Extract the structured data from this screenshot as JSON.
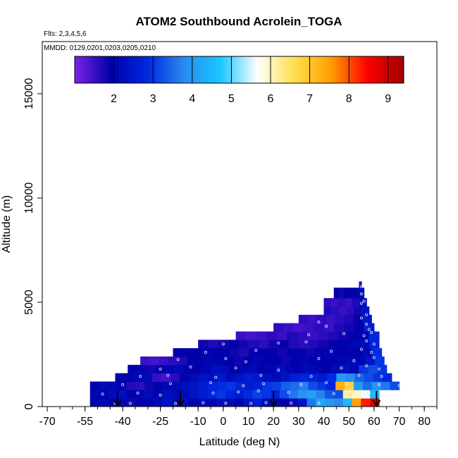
{
  "chart_data": {
    "type": "heatmap",
    "title": "ATOM2 Southbound Acrolein_TOGA",
    "flights_note": "Flts: 2,3,4,5,6",
    "dates_note": "MMDD: 0129,0201,0203,0205,0210",
    "xlabel": "Latitude (deg N)",
    "ylabel": "Altitude (m)",
    "xlim": [
      -72,
      85
    ],
    "ylim": [
      0,
      17500
    ],
    "x_ticks": [
      -70,
      -55,
      -40,
      -25,
      -10,
      0,
      10,
      20,
      30,
      40,
      50,
      60,
      70,
      80
    ],
    "y_ticks": [
      0,
      5000,
      10000,
      15000
    ],
    "colorbar": {
      "range": [
        1,
        9.4
      ],
      "ticks": [
        2,
        3,
        4,
        5,
        6,
        7,
        8,
        9
      ],
      "colors": [
        "#7b22e8",
        "#0000a8",
        "#0028e0",
        "#2a8cf0",
        "#18c8ff",
        "#ffffff",
        "#ffe050",
        "#ffa000",
        "#ff0000",
        "#a00000"
      ]
    },
    "layers": [
      {
        "alt": [
          0,
          400
        ],
        "lat": [
          -53,
          62
        ],
        "values": [
          2.0,
          2.1,
          1.9,
          2.1,
          1.8,
          1.9,
          2.0,
          2.2,
          2.4,
          2.1,
          2.3,
          2.0,
          2.2,
          2.1,
          2.3,
          2.2,
          2.0,
          2.4,
          2.6,
          2.2,
          2.1,
          2.0,
          2.2,
          2.4,
          3.6,
          4.2,
          4.0,
          3.8,
          4.5,
          7.5,
          8.3,
          8.8
        ]
      },
      {
        "alt": [
          400,
          800
        ],
        "lat": [
          -53,
          62
        ],
        "values": [
          2.1,
          2.0,
          2.2,
          2.3,
          2.0,
          2.1,
          2.2,
          2.1,
          2.3,
          2.2,
          2.2,
          2.4,
          2.6,
          2.8,
          3.0,
          2.8,
          2.6,
          2.9,
          3.1,
          3.0,
          2.8,
          3.2,
          3.6,
          3.9,
          4.1,
          3.7,
          3.3,
          3.2,
          6.2,
          6.0,
          5.6,
          4.5
        ]
      },
      {
        "alt": [
          800,
          1200
        ],
        "lat": [
          -53,
          70
        ],
        "values": [
          2.0,
          2.2,
          2.1,
          1.9,
          1.7,
          1.6,
          1.8,
          2.0,
          2.1,
          2.2,
          2.3,
          2.4,
          2.6,
          2.8,
          2.9,
          3.0,
          2.8,
          2.6,
          2.7,
          3.0,
          3.1,
          3.4,
          3.5,
          3.7,
          3.2,
          3.0,
          2.8,
          7.3,
          6.8,
          4.0,
          3.5,
          3.9,
          3.6,
          3.2
        ]
      },
      {
        "alt": [
          1200,
          1600
        ],
        "lat": [
          -43,
          67
        ],
        "values": [
          2.0,
          1.9,
          2.1,
          2.2,
          1.5,
          1.4,
          1.6,
          2.0,
          2.2,
          2.4,
          2.3,
          2.5,
          2.2,
          2.4,
          2.6,
          2.5,
          2.3,
          2.2,
          2.4,
          2.6,
          2.8,
          2.7,
          2.5,
          2.9,
          4.0,
          3.8,
          3.4,
          3.2,
          3.0,
          2.8
        ]
      },
      {
        "alt": [
          1600,
          2000
        ],
        "lat": [
          -38,
          65
        ],
        "values": [
          2.0,
          2.1,
          1.8,
          2.0,
          2.1,
          2.2,
          2.0,
          1.9,
          2.1,
          2.3,
          2.2,
          2.0,
          2.1,
          2.2,
          2.0,
          2.1,
          2.3,
          2.1,
          2.0,
          2.2,
          2.1,
          2.0,
          2.2,
          2.3,
          2.1,
          3.0,
          3.2,
          3.0
        ]
      },
      {
        "alt": [
          2000,
          2400
        ],
        "lat": [
          -33,
          64
        ],
        "values": [
          1.5,
          1.4,
          1.5,
          1.6,
          1.7,
          1.9,
          2.0,
          2.1,
          2.0,
          1.9,
          1.8,
          2.0,
          2.1,
          2.0,
          1.9,
          1.8,
          2.0,
          2.1,
          2.0,
          1.9,
          2.0,
          2.1,
          2.2,
          2.1,
          2.4,
          3.0
        ]
      },
      {
        "alt": [
          2400,
          2800
        ],
        "lat": [
          -20,
          63
        ],
        "values": [
          2.0,
          1.9,
          2.0,
          2.1,
          1.9,
          2.0,
          1.8,
          1.7,
          1.9,
          2.0,
          1.9,
          1.8,
          2.0,
          1.9,
          1.8,
          2.0,
          2.1,
          2.0,
          1.9,
          2.0,
          2.2,
          2.9
        ]
      },
      {
        "alt": [
          2800,
          3200
        ],
        "lat": [
          -10,
          62
        ],
        "values": [
          1.8,
          1.7,
          1.8,
          1.9,
          1.8,
          1.7,
          1.6,
          1.8,
          1.9,
          1.7,
          1.6,
          1.7,
          1.8,
          1.9,
          2.0,
          2.1,
          2.2,
          2.7
        ]
      },
      {
        "alt": [
          3200,
          3600
        ],
        "lat": [
          5,
          62
        ],
        "values": [
          1.5,
          1.4,
          1.5,
          1.6,
          1.5,
          1.7,
          1.6,
          1.5,
          1.6,
          1.7,
          1.8,
          1.9,
          2.0,
          2.8
        ]
      },
      {
        "alt": [
          3600,
          4000
        ],
        "lat": [
          20,
          60
        ],
        "values": [
          1.6,
          1.5,
          1.4,
          1.5,
          1.6,
          1.5,
          1.7,
          1.8,
          1.9,
          2.6
        ]
      },
      {
        "alt": [
          4000,
          4400
        ],
        "lat": [
          30,
          59
        ],
        "values": [
          1.6,
          1.5,
          1.6,
          1.5,
          1.6,
          1.7,
          1.9,
          2.5
        ]
      },
      {
        "alt": [
          4400,
          4800
        ],
        "lat": [
          40,
          58
        ],
        "values": [
          1.7,
          1.6,
          1.5,
          1.6,
          1.8,
          2.4
        ]
      },
      {
        "alt": [
          4800,
          5200
        ],
        "lat": [
          40,
          57
        ],
        "values": [
          1.6,
          1.5,
          1.6,
          1.5,
          1.7,
          2.2
        ]
      },
      {
        "alt": [
          5200,
          5700
        ],
        "lat": [
          44,
          56
        ],
        "values": [
          1.9,
          1.8,
          1.9,
          2.0,
          1.9,
          2.2
        ]
      },
      {
        "alt": [
          5700,
          6000
        ],
        "lat": [
          54,
          55
        ],
        "values": [
          2.4
        ]
      }
    ],
    "flight_arrows_lat": [
      -42,
      -17,
      20,
      61
    ],
    "sample_points": [
      [
        -43,
        150
      ],
      [
        -37,
        150
      ],
      [
        -19,
        150
      ],
      [
        -8,
        180
      ],
      [
        1,
        160
      ],
      [
        11,
        150
      ],
      [
        17,
        190
      ],
      [
        27,
        170
      ],
      [
        38,
        160
      ],
      [
        -48,
        600
      ],
      [
        -34,
        650
      ],
      [
        -25,
        550
      ],
      [
        -4,
        650
      ],
      [
        6,
        700
      ],
      [
        14,
        750
      ],
      [
        26,
        680
      ],
      [
        44,
        620
      ],
      [
        50,
        700
      ],
      [
        58,
        640
      ],
      [
        -40,
        1050
      ],
      [
        -21,
        1100
      ],
      [
        -5,
        1150
      ],
      [
        8,
        1000
      ],
      [
        16,
        1100
      ],
      [
        31,
        1050
      ],
      [
        41,
        1150
      ],
      [
        49,
        1100
      ],
      [
        62,
        1050
      ],
      [
        70,
        1000
      ],
      [
        -33,
        1450
      ],
      [
        -22,
        1500
      ],
      [
        -3,
        1400
      ],
      [
        15,
        1500
      ],
      [
        35,
        1450
      ],
      [
        54,
        1500
      ],
      [
        63,
        1450
      ],
      [
        -25,
        1800
      ],
      [
        -13,
        1900
      ],
      [
        5,
        1850
      ],
      [
        22,
        1750
      ],
      [
        47,
        1850
      ],
      [
        57,
        1950
      ],
      [
        62,
        1800
      ],
      [
        -18,
        2250
      ],
      [
        1,
        2300
      ],
      [
        9,
        2150
      ],
      [
        38,
        2300
      ],
      [
        52,
        2200
      ],
      [
        60,
        2350
      ],
      [
        -7,
        2600
      ],
      [
        13,
        2700
      ],
      [
        43,
        2650
      ],
      [
        55,
        2750
      ],
      [
        59,
        2600
      ],
      [
        0,
        3000
      ],
      [
        22,
        3050
      ],
      [
        33,
        3100
      ],
      [
        57,
        3150
      ],
      [
        60,
        3000
      ],
      [
        34,
        3450
      ],
      [
        48,
        3500
      ],
      [
        56,
        3400
      ],
      [
        59,
        3550
      ],
      [
        41,
        3850
      ],
      [
        57,
        3950
      ],
      [
        58,
        3700
      ],
      [
        38,
        4050
      ],
      [
        55,
        4250
      ],
      [
        57,
        4400
      ],
      [
        55,
        4950
      ],
      [
        56,
        5050
      ],
      [
        55,
        5400
      ],
      [
        55,
        5750
      ]
    ]
  }
}
